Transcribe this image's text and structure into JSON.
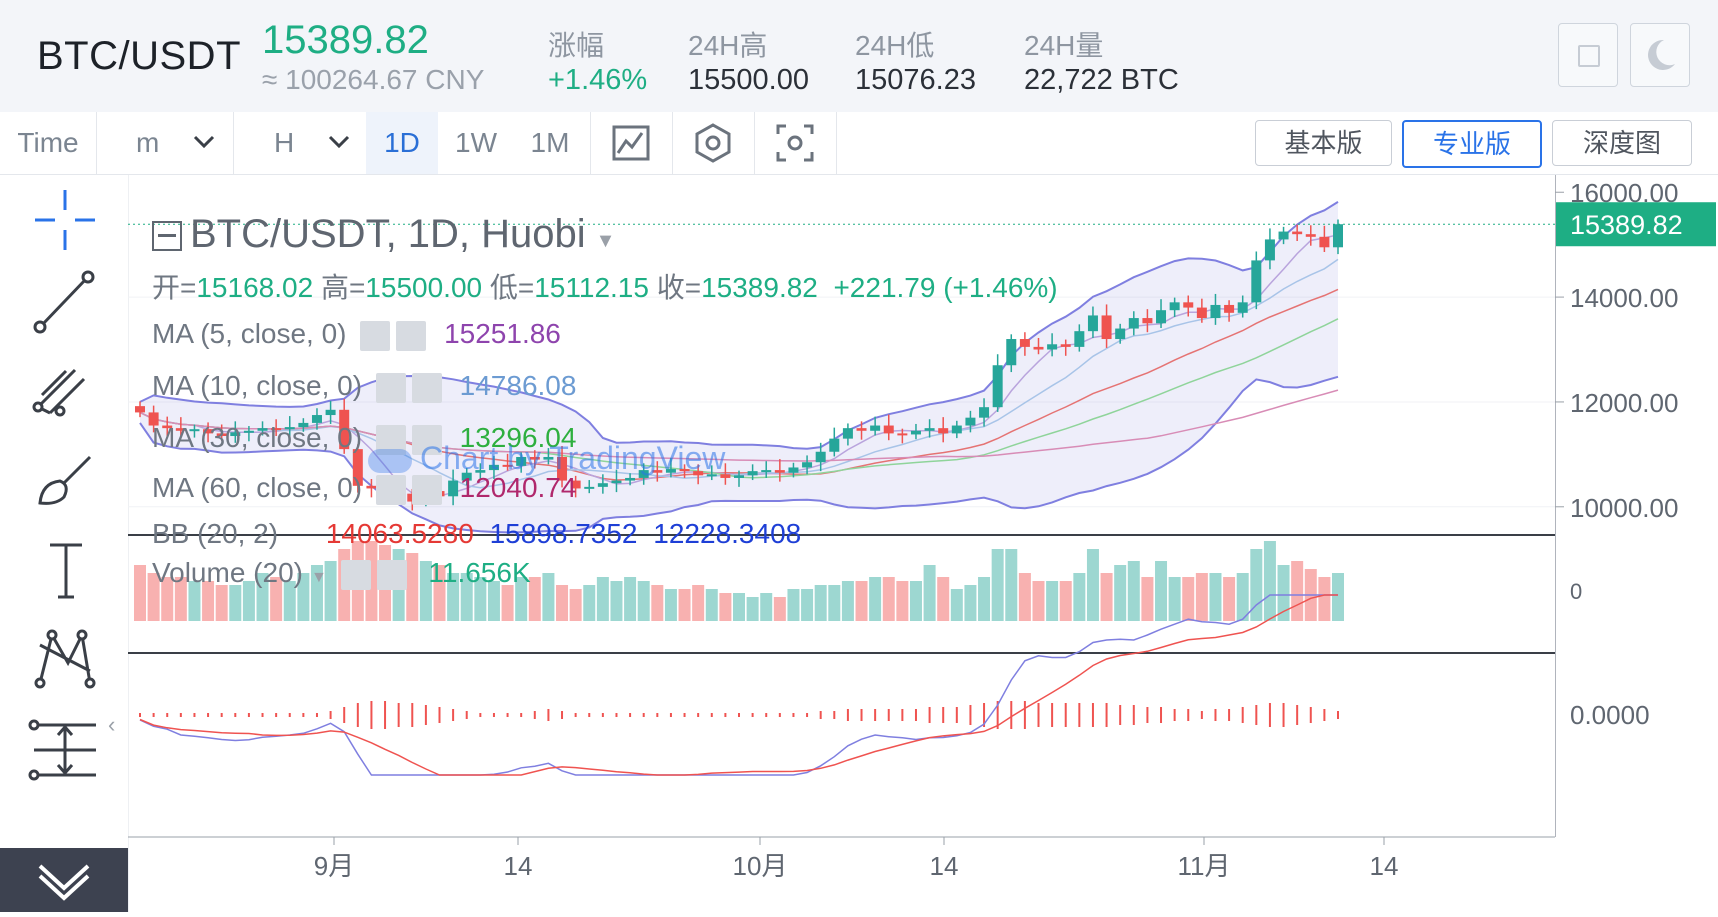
{
  "header": {
    "pair": "BTC/USDT",
    "price": "15389.82",
    "cny": "≈ 100264.67 CNY",
    "stats": [
      {
        "label": "涨幅",
        "value": "+1.46%",
        "color": "#1eae84"
      },
      {
        "label": "24H高",
        "value": "15500.00",
        "color": "#2b3038"
      },
      {
        "label": "24H低",
        "value": "15076.23",
        "color": "#2b3038"
      },
      {
        "label": "24H量",
        "value": "22,722 BTC",
        "color": "#2b3038"
      }
    ]
  },
  "toolbar": {
    "time_label": "Time",
    "minute_label": "m",
    "hour_label": "H",
    "intervals": [
      "1D",
      "1W",
      "1M"
    ],
    "active_interval": "1D",
    "tabs": [
      "基本版",
      "专业版",
      "深度图"
    ],
    "active_tab": "专业版"
  },
  "legend": {
    "title": "BTC/USDT, 1D, Huobi",
    "ohlc_open_label": "开=",
    "ohlc_open": "15168.02",
    "ohlc_high_label": "高=",
    "ohlc_high": "15500.00",
    "ohlc_low_label": "低=",
    "ohlc_low": "15112.15",
    "ohlc_close_label": "收=",
    "ohlc_close": "15389.82",
    "ohlc_change": "+221.79 (+1.46%)",
    "ma5_label": "MA (5, close, 0)",
    "ma5_value": "15251.86",
    "ma10_label": "MA (10, close, 0)",
    "ma10_value": "14786.08",
    "ma30_label": "MA (30, close, 0)",
    "ma30_value": "13296.04",
    "ma60_label": "MA (60, close, 0)",
    "ma60_value": "12040.74",
    "bb_label": "BB (20, 2)",
    "bb_values": [
      "14063.5280",
      "15898.7352",
      "12228.3408"
    ],
    "volume_label": "Volume (20)",
    "volume_value": "11.656K",
    "watermark": "Chart by TradingView"
  },
  "price_axis": {
    "ticks": [
      "16000.00",
      "14000.00",
      "12000.00",
      "10000.00"
    ],
    "current_price_tag": "15389.82",
    "volume_tick": "0",
    "macd_tick": "0.0000"
  },
  "time_axis": {
    "ticks": [
      "9月",
      "14",
      "10月",
      "14",
      "11月",
      "14"
    ]
  },
  "colors": {
    "up": "#26a69a",
    "down": "#ef5350",
    "accent": "#2a73e8",
    "price_tag": "#1eae84",
    "ma5": "#8e44ad",
    "ma10": "#6c9bd2",
    "ma30": "#2eaf3f",
    "ma60": "#b0286c"
  },
  "chart_data": {
    "type": "candlestick",
    "closes": [
      11800,
      11550,
      11500,
      11450,
      11480,
      11400,
      11350,
      11420,
      11450,
      11500,
      11480,
      11520,
      11600,
      11750,
      11850,
      11100,
      10400,
      10350,
      10200,
      10250,
      10100,
      10300,
      10200,
      10500,
      10650,
      10700,
      10800,
      10780,
      10950,
      10900,
      10950,
      10500,
      10350,
      10380,
      10450,
      10500,
      10550,
      10700,
      10650,
      10720,
      10680,
      10600,
      10620,
      10550,
      10600,
      10680,
      10700,
      10650,
      10750,
      10850,
      11050,
      11300,
      11500,
      11450,
      11550,
      11400,
      11380,
      11450,
      11500,
      11400,
      11550,
      11700,
      11900,
      12700,
      13200,
      13050,
      13000,
      13100,
      13050,
      13350,
      13650,
      13200,
      13400,
      13600,
      13500,
      13750,
      13900,
      13800,
      13600,
      13850,
      13700,
      13900,
      14700,
      15100,
      15250,
      15200,
      15150,
      14950,
      15389.82
    ],
    "volumes": [
      0.7,
      0.6,
      0.55,
      0.55,
      0.5,
      0.5,
      0.45,
      0.45,
      0.5,
      0.6,
      0.55,
      0.5,
      0.6,
      0.7,
      0.75,
      0.9,
      1.0,
      1.0,
      0.95,
      0.9,
      0.85,
      0.75,
      0.7,
      0.6,
      0.6,
      0.55,
      0.5,
      0.45,
      0.55,
      0.55,
      0.6,
      0.45,
      0.4,
      0.45,
      0.55,
      0.5,
      0.55,
      0.5,
      0.45,
      0.4,
      0.4,
      0.45,
      0.4,
      0.35,
      0.35,
      0.3,
      0.35,
      0.3,
      0.4,
      0.4,
      0.45,
      0.45,
      0.5,
      0.5,
      0.55,
      0.55,
      0.5,
      0.5,
      0.7,
      0.55,
      0.4,
      0.45,
      0.55,
      0.9,
      0.9,
      0.6,
      0.5,
      0.5,
      0.5,
      0.6,
      0.9,
      0.6,
      0.7,
      0.75,
      0.55,
      0.75,
      0.55,
      0.55,
      0.6,
      0.6,
      0.55,
      0.6,
      0.9,
      1.0,
      0.7,
      0.75,
      0.65,
      0.55,
      0.6
    ],
    "macd_hist": [
      0.05,
      0.05,
      0.05,
      0.05,
      0.05,
      0.05,
      0.05,
      0.05,
      0.05,
      0.05,
      0.05,
      0.05,
      0.05,
      0.05,
      0.1,
      0.2,
      0.3,
      0.35,
      0.35,
      0.3,
      0.3,
      0.25,
      0.2,
      0.15,
      0.1,
      0.05,
      0.05,
      0.05,
      0.05,
      0.1,
      0.15,
      0.1,
      0.05,
      0.05,
      0.05,
      0.05,
      0.05,
      0.05,
      0.05,
      0.05,
      0.05,
      0.05,
      0.05,
      0.05,
      0.05,
      0.05,
      0.05,
      0.05,
      0.05,
      0.05,
      0.1,
      0.1,
      0.15,
      0.15,
      0.15,
      0.15,
      0.15,
      0.15,
      0.2,
      0.2,
      0.2,
      0.25,
      0.3,
      0.35,
      0.35,
      0.35,
      0.3,
      0.3,
      0.3,
      0.3,
      0.3,
      0.3,
      0.25,
      0.25,
      0.2,
      0.2,
      0.15,
      0.15,
      0.1,
      0.15,
      0.15,
      0.2,
      0.25,
      0.3,
      0.3,
      0.25,
      0.2,
      0.15,
      0.1
    ],
    "ylim": [
      9500,
      16100
    ]
  }
}
